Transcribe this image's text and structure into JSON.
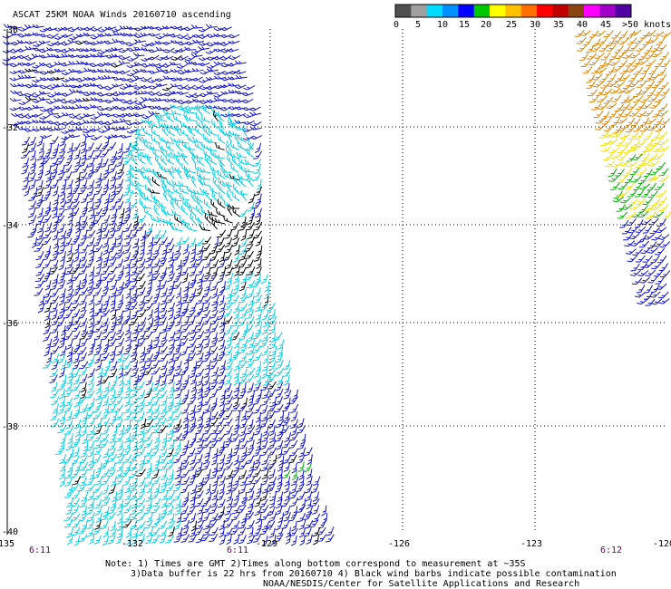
{
  "title": "ASCAT 25KM NOAA Winds 20160710 ascending",
  "colorbar": {
    "labels": [
      "0",
      "5",
      "10",
      "15",
      "20",
      "25",
      "30",
      "35",
      "40",
      "45",
      ">50 knots"
    ],
    "colors": [
      "#505050",
      "#a0a0a0",
      "#00dcff",
      "#0090ff",
      "#0000ff",
      "#00c800",
      "#ffff00",
      "#ffc000",
      "#ff7000",
      "#ff0000",
      "#c00000",
      "#8b4513",
      "#ff00ff",
      "#a000c8",
      "#5000a0"
    ]
  },
  "latitudes": [
    "-30",
    "-32",
    "-34",
    "-36",
    "-38",
    "-40"
  ],
  "longitudes": [
    "-135",
    "-132",
    "-129",
    "-126",
    "-123",
    "-120"
  ],
  "times": [
    "6:11",
    "6:11",
    "6:12"
  ],
  "notes": {
    "line1": "Note: 1) Times are GMT 2)Times along bottom correspond to measurement at ~35S",
    "line2": "3)Data buffer is 22 hrs from 20160710 4) Black wind barbs indicate possible contamination",
    "line3": "NOAA/NESDIS/Center for Satellite Applications and Research"
  },
  "colors": {
    "grid": "#000000",
    "barb_blue": "#1010d0",
    "barb_cyan": "#00d0e8",
    "barb_black": "#000000",
    "barb_green": "#00b000",
    "barb_yellow": "#f0e000",
    "barb_orange": "#e08000",
    "time_label": "#660066"
  }
}
